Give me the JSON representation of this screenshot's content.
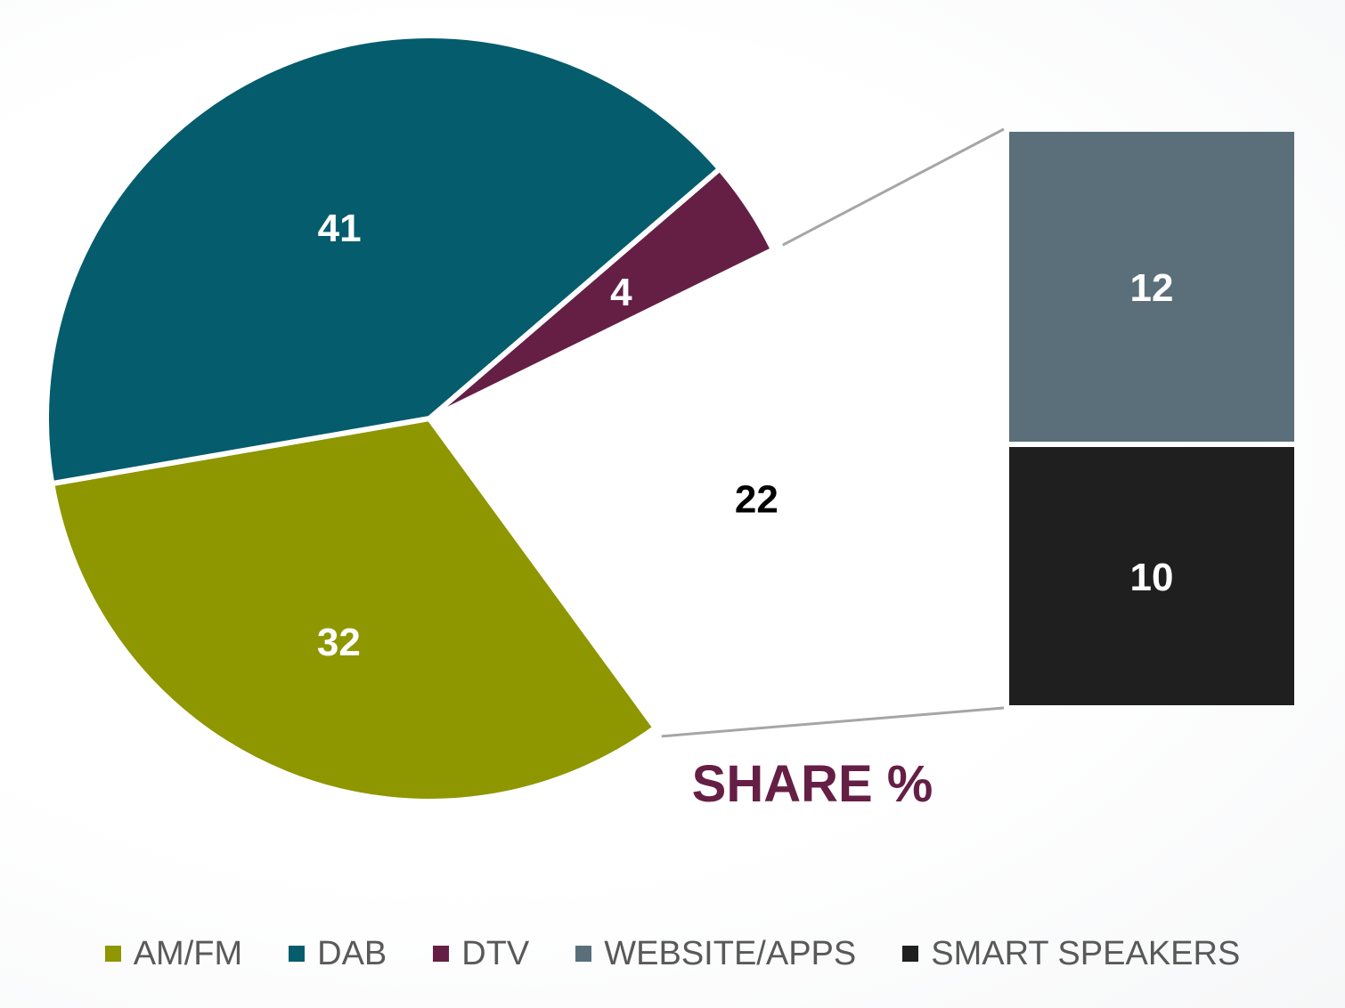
{
  "chart_data": {
    "type": "pie",
    "subtype": "bar-of-pie",
    "title": "SHARE %",
    "pie": [
      {
        "label": "AM/FM",
        "value": 32,
        "color": "#8e9600"
      },
      {
        "label": "DAB",
        "value": 41,
        "color": "#055c6c"
      },
      {
        "label": "DTV",
        "value": 4,
        "color": "#651f45"
      },
      {
        "label": "",
        "value": 22,
        "color": "#ffffff",
        "exploded_to_bar": true
      }
    ],
    "bar": [
      {
        "label": "WEBSITE/APPS",
        "value": 12,
        "color": "#5a6f7a"
      },
      {
        "label": "SMART SPEAKERS",
        "value": 10,
        "color": "#1f1f1f"
      }
    ],
    "legend": {
      "position": "bottom",
      "entries": [
        {
          "label": "AM/FM",
          "color": "#8e9600"
        },
        {
          "label": "DAB",
          "color": "#055c6c"
        },
        {
          "label": "DTV",
          "color": "#651f45"
        },
        {
          "label": "WEBSITE/APPS",
          "color": "#5a6f7a"
        },
        {
          "label": "SMART SPEAKERS",
          "color": "#1f1f1f"
        }
      ]
    },
    "title_color": "#651f45",
    "connector_color": "#a6a6a6"
  }
}
